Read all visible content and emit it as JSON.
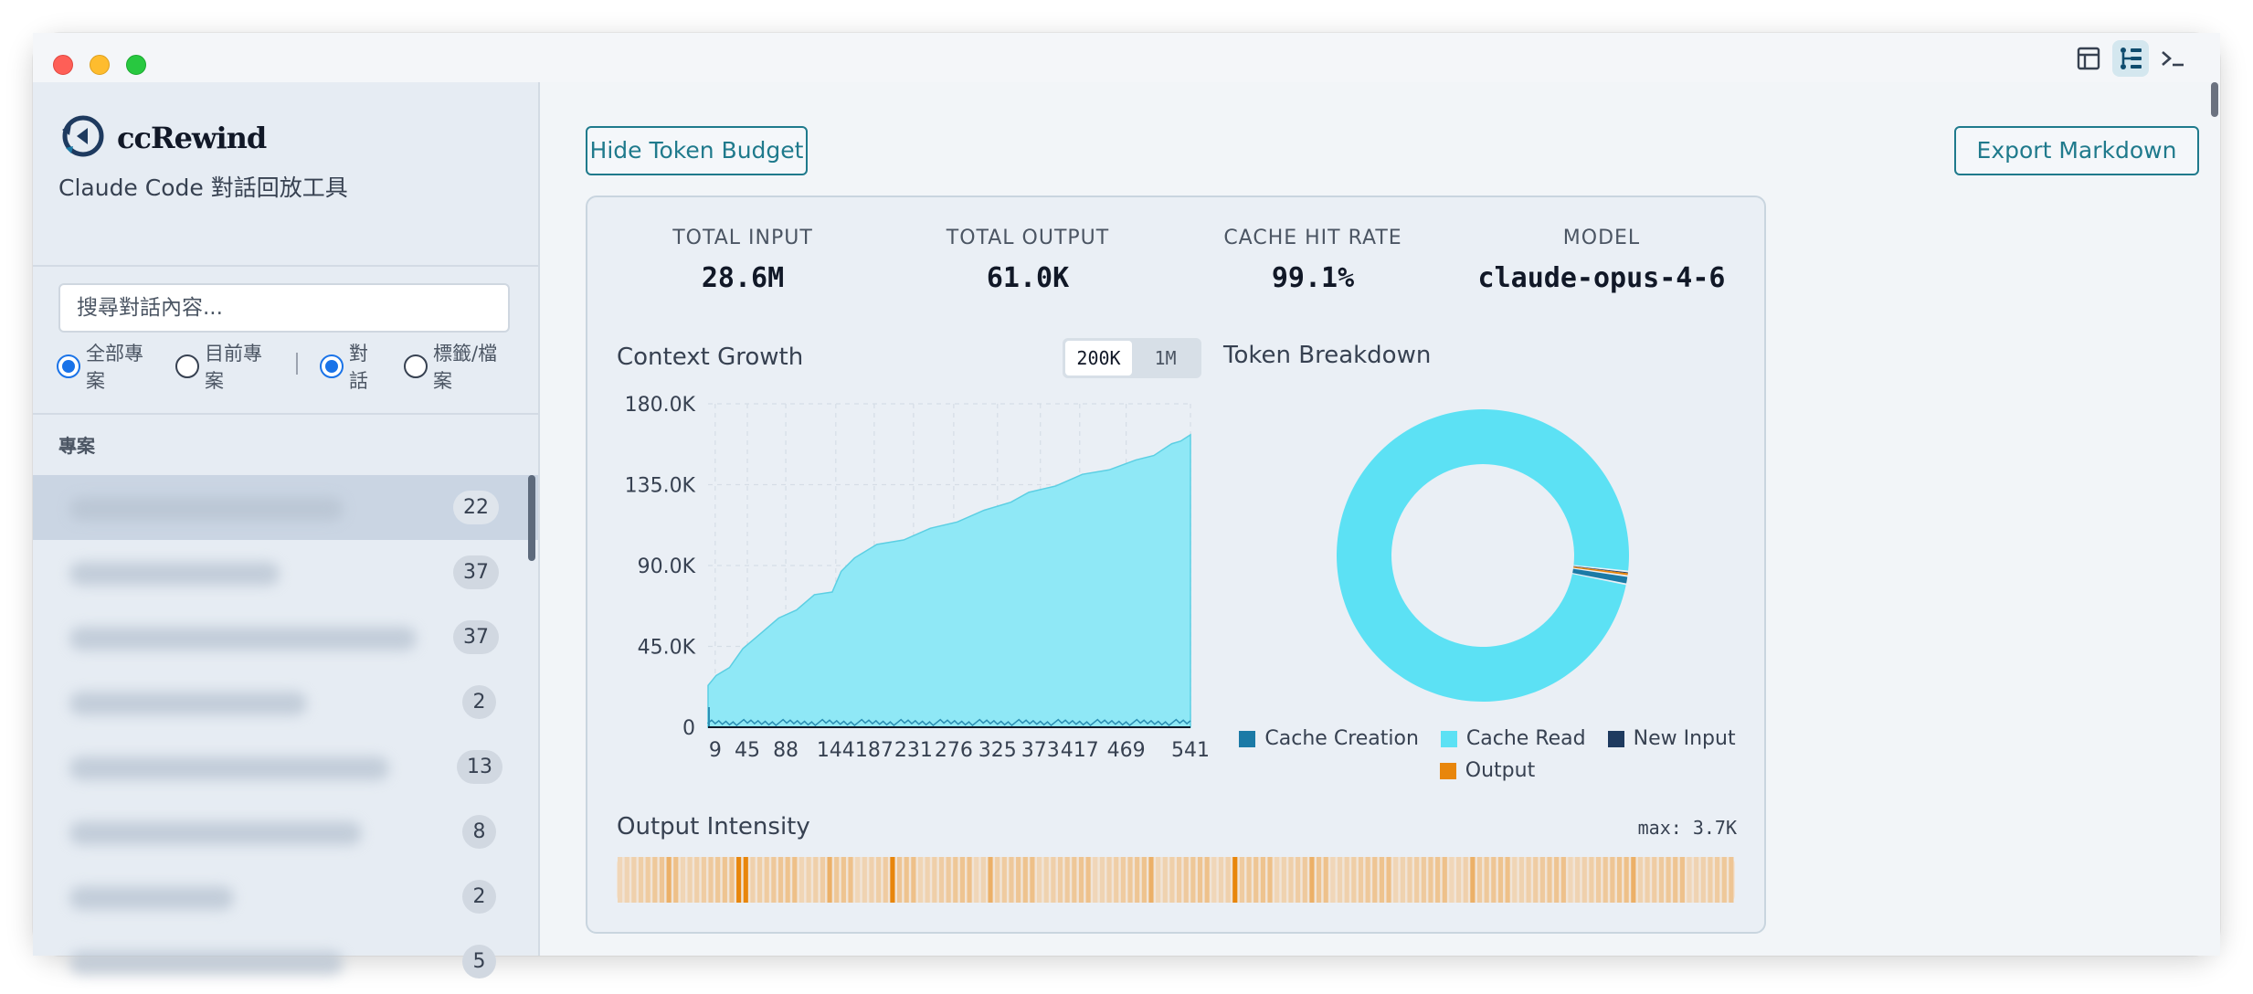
{
  "app": {
    "name": "ccRewind",
    "subtitle": "Claude Code 對話回放工具"
  },
  "sidebar": {
    "search_placeholder": "搜尋對話內容...",
    "filters": [
      {
        "label": "全部專案",
        "selected": true
      },
      {
        "label": "目前專案",
        "selected": false
      },
      {
        "label": "對話",
        "selected": true
      },
      {
        "label": "標籤/檔案",
        "selected": false
      }
    ],
    "section_title": "專案",
    "projects": [
      {
        "count": "22",
        "active": true
      },
      {
        "count": "37",
        "active": false
      },
      {
        "count": "37",
        "active": false
      },
      {
        "count": "2",
        "active": false
      },
      {
        "count": "13",
        "active": false
      },
      {
        "count": "8",
        "active": false
      },
      {
        "count": "2",
        "active": false
      },
      {
        "count": "5",
        "active": false
      }
    ]
  },
  "toolbar": {
    "hide_budget_label": "Hide Token Budget",
    "export_label": "Export Markdown"
  },
  "stats": [
    {
      "label": "TOTAL INPUT",
      "value": "28.6M"
    },
    {
      "label": "TOTAL OUTPUT",
      "value": "61.0K"
    },
    {
      "label": "CACHE HIT RATE",
      "value": "99.1%"
    },
    {
      "label": "MODEL",
      "value": "claude-opus-4-6"
    }
  ],
  "context_growth": {
    "title": "Context Growth",
    "toggle": [
      {
        "label": "200K",
        "selected": true
      },
      {
        "label": "1M",
        "selected": false
      }
    ]
  },
  "token_breakdown": {
    "title": "Token Breakdown"
  },
  "output_intensity": {
    "title": "Output Intensity",
    "max_label": "max: 3.7K"
  },
  "colors": {
    "accent": "#1f7a8c",
    "cache_read": "#5ce1f4",
    "cache_creation": "#1b7aa6",
    "new_input": "#1e3a5f",
    "output": "#e8860c"
  },
  "chart_data": [
    {
      "type": "area",
      "title": "Context Growth",
      "x_ticks": [
        "9",
        "45",
        "88",
        "144",
        "187",
        "231",
        "276",
        "325",
        "373",
        "417",
        "469",
        "541"
      ],
      "y_ticks": [
        "0",
        "45.0K",
        "90.0K",
        "135.0K",
        "180.0K"
      ],
      "ylim": [
        0,
        180000
      ],
      "xlim": [
        1,
        541
      ],
      "grid": true,
      "series": [
        {
          "values_x": [
            1,
            10,
            25,
            40,
            60,
            80,
            100,
            120,
            140,
            150,
            165,
            190,
            220,
            250,
            280,
            310,
            340,
            360,
            390,
            420,
            450,
            480,
            500,
            520,
            530,
            541
          ],
          "values_y": [
            24000,
            28000,
            34000,
            43000,
            53000,
            60000,
            66000,
            73000,
            76000,
            86000,
            95000,
            101000,
            105000,
            110000,
            115000,
            120000,
            126000,
            130000,
            135000,
            140000,
            144000,
            148000,
            152000,
            157000,
            160000,
            162000
          ]
        }
      ]
    },
    {
      "type": "pie",
      "title": "Token Breakdown",
      "legend": [
        "Cache Creation",
        "Cache Read",
        "New Input",
        "Output"
      ],
      "legend_position": "bottom",
      "values": [
        0.9,
        98.6,
        0.1,
        0.4
      ]
    },
    {
      "type": "heatmap",
      "title": "Output Intensity",
      "max": "3.7K",
      "peaks": [
        0.11,
        0.246,
        0.55
      ]
    }
  ]
}
